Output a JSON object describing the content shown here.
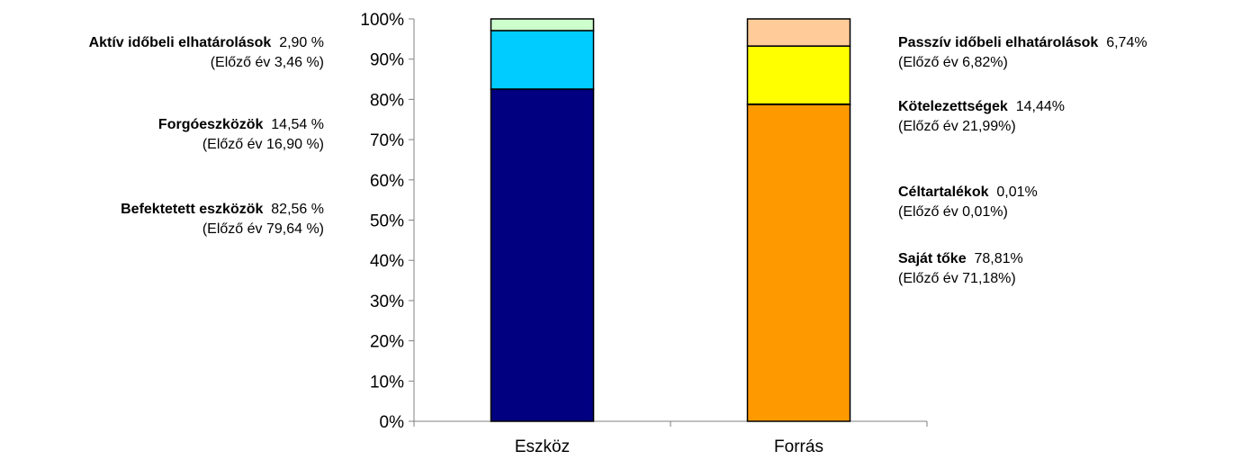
{
  "chart_data": {
    "type": "bar",
    "stacked": true,
    "categories": [
      "Eszköz",
      "Forrás"
    ],
    "ylim": [
      0,
      100
    ],
    "yticks": [
      "0%",
      "10%",
      "20%",
      "30%",
      "40%",
      "50%",
      "60%",
      "70%",
      "80%",
      "90%",
      "100%"
    ],
    "series": [
      {
        "category": "Eszköz",
        "segments": [
          {
            "name": "Befektetett eszközök",
            "value": 82.56,
            "color": "#000080"
          },
          {
            "name": "Forgóeszközök",
            "value": 14.54,
            "color": "#00CCFF"
          },
          {
            "name": "Aktív időbeli elhatárolások",
            "value": 2.9,
            "color": "#CCFFCC"
          }
        ]
      },
      {
        "category": "Forrás",
        "segments": [
          {
            "name": "Saját tőke",
            "value": 78.81,
            "color": "#FF9900"
          },
          {
            "name": "Céltartalékok",
            "value": 0.01,
            "color": "#FF9900"
          },
          {
            "name": "Kötelezettségek",
            "value": 14.44,
            "color": "#FFFF00"
          },
          {
            "name": "Passzív időbeli elhatárolások",
            "value": 6.74,
            "color": "#FFCC99"
          }
        ]
      }
    ],
    "annotations_left": [
      {
        "bold": "Aktív időbeli elhatárolások",
        "value": "2,90 %",
        "prev": "(Előző év 3,46 %)"
      },
      {
        "bold": "Forgóeszközök",
        "value": "14,54 %",
        "prev": "(Előző év 16,90 %)"
      },
      {
        "bold": "Befektetett eszközök",
        "value": "82,56 %",
        "prev": "(Előző év 79,64 %)"
      }
    ],
    "annotations_right": [
      {
        "bold": "Passzív időbeli elhatárolások",
        "value": "6,74%",
        "prev": "(Előző év 6,82%)"
      },
      {
        "bold": "Kötelezettségek",
        "value": "14,44%",
        "prev": "(Előző év 21,99%)"
      },
      {
        "bold": "Céltartalékok",
        "value": "0,01%",
        "prev": "(Előző év 0,01%)"
      },
      {
        "bold": "Saját tőke",
        "value": "78,81%",
        "prev": "(Előző év 71,18%)"
      }
    ]
  }
}
